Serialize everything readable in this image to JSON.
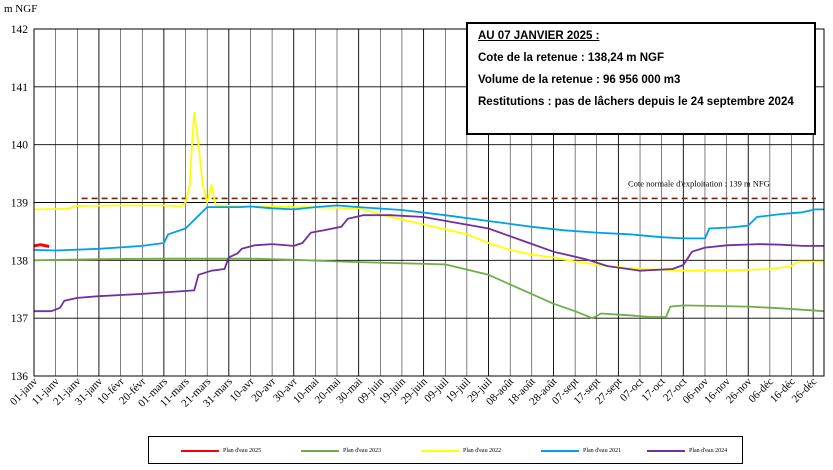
{
  "chart_data": {
    "type": "line",
    "ylabel": "m NGF",
    "ylim": [
      136,
      142
    ],
    "yticks": [
      136,
      137,
      138,
      139,
      140,
      141,
      142
    ],
    "x_tick_labels": [
      "01-janv",
      "11-janv",
      "21-janv",
      "31-janv",
      "10-févr",
      "20-févr",
      "01-mars",
      "11-mars",
      "21-mars",
      "31-mars",
      "10-avr",
      "20-avr",
      "30-avr",
      "10-mai",
      "20-mai",
      "30-mai",
      "09-juin",
      "19-juin",
      "29-juin",
      "09-juil",
      "19-juil",
      "29-juil",
      "08-août",
      "18-août",
      "28-août",
      "07-sept",
      "17-sept",
      "27-sept",
      "07-oct",
      "17-oct",
      "27-oct",
      "06-nov",
      "16-nov",
      "26-nov",
      "06-déc",
      "16-déc",
      "26-déc"
    ],
    "reference_line": {
      "value": 139.07,
      "label": "Cote normale d'exploitation : 139 m NFG",
      "color": "#6b2a0e"
    },
    "series": [
      {
        "name": "Plan d'eau 2025",
        "color": "#ff0000",
        "points": [
          [
            0,
            138.25
          ],
          [
            3,
            138.27
          ],
          [
            7,
            138.24
          ]
        ]
      },
      {
        "name": "Plan d'eau 2023",
        "color": "#70ad47",
        "points": [
          [
            0,
            138.0
          ],
          [
            30,
            138.02
          ],
          [
            60,
            138.03
          ],
          [
            100,
            138.03
          ],
          [
            120,
            138.01
          ],
          [
            150,
            137.97
          ],
          [
            190,
            137.93
          ],
          [
            210,
            137.75
          ],
          [
            225,
            137.5
          ],
          [
            240,
            137.25
          ],
          [
            250,
            137.12
          ],
          [
            258,
            137.0
          ],
          [
            262,
            137.08
          ],
          [
            275,
            137.05
          ],
          [
            285,
            137.02
          ],
          [
            292,
            137.02
          ],
          [
            294,
            137.2
          ],
          [
            300,
            137.22
          ],
          [
            330,
            137.2
          ],
          [
            345,
            137.17
          ],
          [
            365,
            137.12
          ]
        ]
      },
      {
        "name": "Plan d'eau 2022",
        "color": "#ffff00",
        "points": [
          [
            0,
            138.88
          ],
          [
            15,
            138.89
          ],
          [
            20,
            138.94
          ],
          [
            40,
            138.95
          ],
          [
            60,
            138.95
          ],
          [
            68,
            138.93
          ],
          [
            70,
            139.0
          ],
          [
            72,
            139.3
          ],
          [
            73,
            140.0
          ],
          [
            74,
            140.55
          ],
          [
            76,
            140.0
          ],
          [
            78,
            139.3
          ],
          [
            80,
            139.0
          ],
          [
            82,
            139.3
          ],
          [
            84,
            138.95
          ],
          [
            100,
            138.93
          ],
          [
            125,
            138.92
          ],
          [
            150,
            138.9
          ],
          [
            165,
            138.75
          ],
          [
            180,
            138.62
          ],
          [
            200,
            138.45
          ],
          [
            210,
            138.3
          ],
          [
            220,
            138.18
          ],
          [
            230,
            138.1
          ],
          [
            240,
            138.05
          ],
          [
            250,
            137.98
          ],
          [
            265,
            137.9
          ],
          [
            280,
            137.85
          ],
          [
            300,
            137.82
          ],
          [
            325,
            137.83
          ],
          [
            340,
            137.85
          ],
          [
            350,
            137.9
          ],
          [
            353,
            137.98
          ],
          [
            365,
            137.98
          ]
        ]
      },
      {
        "name": "Plan d'eau 2021",
        "color": "#00a0e9",
        "points": [
          [
            0,
            138.18
          ],
          [
            10,
            138.17
          ],
          [
            30,
            138.2
          ],
          [
            50,
            138.25
          ],
          [
            60,
            138.3
          ],
          [
            62,
            138.45
          ],
          [
            70,
            138.55
          ],
          [
            80,
            138.92
          ],
          [
            95,
            138.92
          ],
          [
            100,
            138.93
          ],
          [
            110,
            138.9
          ],
          [
            120,
            138.88
          ],
          [
            130,
            138.92
          ],
          [
            140,
            138.95
          ],
          [
            150,
            138.92
          ],
          [
            170,
            138.87
          ],
          [
            190,
            138.78
          ],
          [
            210,
            138.68
          ],
          [
            230,
            138.58
          ],
          [
            245,
            138.52
          ],
          [
            260,
            138.48
          ],
          [
            275,
            138.45
          ],
          [
            290,
            138.4
          ],
          [
            300,
            138.38
          ],
          [
            310,
            138.38
          ],
          [
            312,
            138.55
          ],
          [
            322,
            138.57
          ],
          [
            330,
            138.6
          ],
          [
            334,
            138.75
          ],
          [
            345,
            138.8
          ],
          [
            355,
            138.83
          ],
          [
            361,
            138.88
          ],
          [
            365,
            138.88
          ]
        ]
      },
      {
        "name": "Plan d'eau 2024",
        "color": "#7030a0",
        "points": [
          [
            0,
            137.12
          ],
          [
            8,
            137.12
          ],
          [
            12,
            137.18
          ],
          [
            14,
            137.3
          ],
          [
            20,
            137.35
          ],
          [
            30,
            137.38
          ],
          [
            50,
            137.42
          ],
          [
            62,
            137.45
          ],
          [
            74,
            137.48
          ],
          [
            76,
            137.75
          ],
          [
            82,
            137.82
          ],
          [
            88,
            137.85
          ],
          [
            90,
            138.05
          ],
          [
            94,
            138.12
          ],
          [
            96,
            138.2
          ],
          [
            102,
            138.26
          ],
          [
            110,
            138.28
          ],
          [
            120,
            138.25
          ],
          [
            124,
            138.3
          ],
          [
            128,
            138.48
          ],
          [
            134,
            138.52
          ],
          [
            142,
            138.58
          ],
          [
            145,
            138.72
          ],
          [
            152,
            138.78
          ],
          [
            165,
            138.78
          ],
          [
            180,
            138.75
          ],
          [
            195,
            138.65
          ],
          [
            210,
            138.55
          ],
          [
            225,
            138.35
          ],
          [
            240,
            138.15
          ],
          [
            255,
            138.02
          ],
          [
            265,
            137.9
          ],
          [
            280,
            137.82
          ],
          [
            295,
            137.85
          ],
          [
            300,
            137.92
          ],
          [
            304,
            138.15
          ],
          [
            310,
            138.22
          ],
          [
            320,
            138.26
          ],
          [
            335,
            138.28
          ],
          [
            345,
            138.27
          ],
          [
            355,
            138.25
          ],
          [
            365,
            138.25
          ]
        ]
      }
    ]
  },
  "info_box": {
    "date": "AU 07 JANVIER 2025 :",
    "line1": "Cote de la retenue : 138,24 m NGF",
    "line2": "Volume de la retenue : 96 956 000 m3",
    "line3": "Restitutions : pas de lâchers depuis le 24 septembre 2024"
  },
  "legend": [
    {
      "label": "Plan d'eau 2025",
      "color": "#ff0000"
    },
    {
      "label": "Plan d'eau 2023",
      "color": "#70ad47"
    },
    {
      "label": "Plan d'eau 2022",
      "color": "#ffff00"
    },
    {
      "label": "Plan d'eau 2021",
      "color": "#00a0e9"
    },
    {
      "label": "Plan d'eau 2024",
      "color": "#7030a0"
    }
  ]
}
